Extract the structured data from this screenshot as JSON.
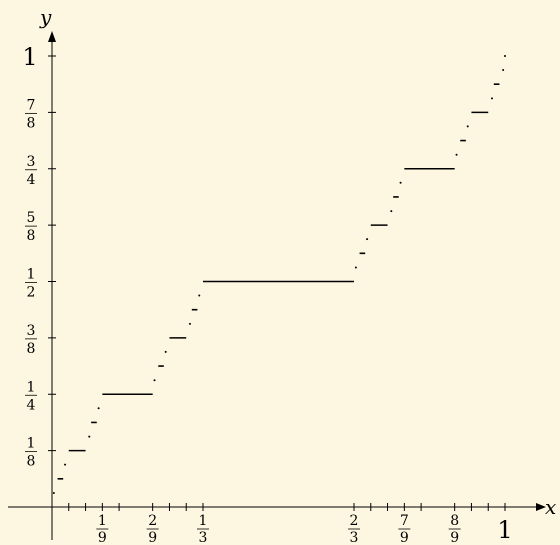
{
  "chart_data": {
    "type": "line",
    "title": "",
    "xlabel": "x",
    "ylabel": "y",
    "xlim": [
      0,
      1
    ],
    "ylim": [
      0,
      1
    ],
    "grid": false,
    "x_ticks_labeled": [
      {
        "value": 0.1111,
        "num": "1",
        "den": "9"
      },
      {
        "value": 0.2222,
        "num": "2",
        "den": "9"
      },
      {
        "value": 0.3333,
        "num": "1",
        "den": "3"
      },
      {
        "value": 0.6667,
        "num": "2",
        "den": "3"
      },
      {
        "value": 0.7778,
        "num": "7",
        "den": "9"
      },
      {
        "value": 0.8889,
        "num": "8",
        "den": "9"
      },
      {
        "value": 1,
        "whole": "1"
      }
    ],
    "x_ticks_minor": [
      0.037,
      0.0741,
      0.1481,
      0.2593,
      0.2963,
      0.7037,
      0.7407,
      0.8148,
      0.9259,
      0.963
    ],
    "y_ticks_labeled": [
      {
        "value": 0.125,
        "num": "1",
        "den": "8"
      },
      {
        "value": 0.25,
        "num": "1",
        "den": "4"
      },
      {
        "value": 0.375,
        "num": "3",
        "den": "8"
      },
      {
        "value": 0.5,
        "num": "1",
        "den": "2"
      },
      {
        "value": 0.625,
        "num": "5",
        "den": "8"
      },
      {
        "value": 0.75,
        "num": "3",
        "den": "4"
      },
      {
        "value": 0.875,
        "num": "7",
        "den": "8"
      },
      {
        "value": 1,
        "whole": "1"
      }
    ],
    "series": [
      {
        "description_free": true,
        "plateaus": [
          {
            "x": [
              0.0123,
              0.0247
            ],
            "y": 0.0625
          },
          {
            "x": [
              0.037,
              0.0741
            ],
            "y": 0.125
          },
          {
            "x": [
              0.1111,
              0.2222
            ],
            "y": 0.25
          },
          {
            "x": [
              0.2593,
              0.2963
            ],
            "y": 0.375
          },
          {
            "x": [
              0.3333,
              0.6667
            ],
            "y": 0.5
          },
          {
            "x": [
              0.7037,
              0.7407
            ],
            "y": 0.625
          },
          {
            "x": [
              0.7778,
              0.8889
            ],
            "y": 0.75
          },
          {
            "x": [
              0.9259,
              0.963
            ],
            "y": 0.875
          },
          {
            "x": [
              0.0864,
              0.0988
            ],
            "y": 0.1875
          },
          {
            "x": [
              0.2346,
              0.2469
            ],
            "y": 0.3125
          },
          {
            "x": [
              0.3086,
              0.321
            ],
            "y": 0.4375
          },
          {
            "x": [
              0.679,
              0.6914
            ],
            "y": 0.5625
          },
          {
            "x": [
              0.7531,
              0.7654
            ],
            "y": 0.6875
          },
          {
            "x": [
              0.9012,
              0.9136
            ],
            "y": 0.8125
          },
          {
            "x": [
              0.9753,
              0.9877
            ],
            "y": 0.9375
          }
        ],
        "dots": [
          {
            "x": 0.0041,
            "y": 0.031
          },
          {
            "x": 0.0288,
            "y": 0.094
          },
          {
            "x": 0.0823,
            "y": 0.156
          },
          {
            "x": 0.1029,
            "y": 0.219
          },
          {
            "x": 0.2263,
            "y": 0.281
          },
          {
            "x": 0.251,
            "y": 0.344
          },
          {
            "x": 0.3045,
            "y": 0.406
          },
          {
            "x": 0.3251,
            "y": 0.469
          },
          {
            "x": 0.6708,
            "y": 0.531
          },
          {
            "x": 0.6955,
            "y": 0.594
          },
          {
            "x": 0.749,
            "y": 0.656
          },
          {
            "x": 0.7695,
            "y": 0.719
          },
          {
            "x": 0.893,
            "y": 0.781
          },
          {
            "x": 0.9177,
            "y": 0.844
          },
          {
            "x": 0.9712,
            "y": 0.906
          },
          {
            "x": 0.9959,
            "y": 0.969
          },
          {
            "x": 1.0,
            "y": 1.0
          }
        ]
      }
    ]
  },
  "colors": {
    "background": "#fdf6e1",
    "ink": "#000000"
  }
}
